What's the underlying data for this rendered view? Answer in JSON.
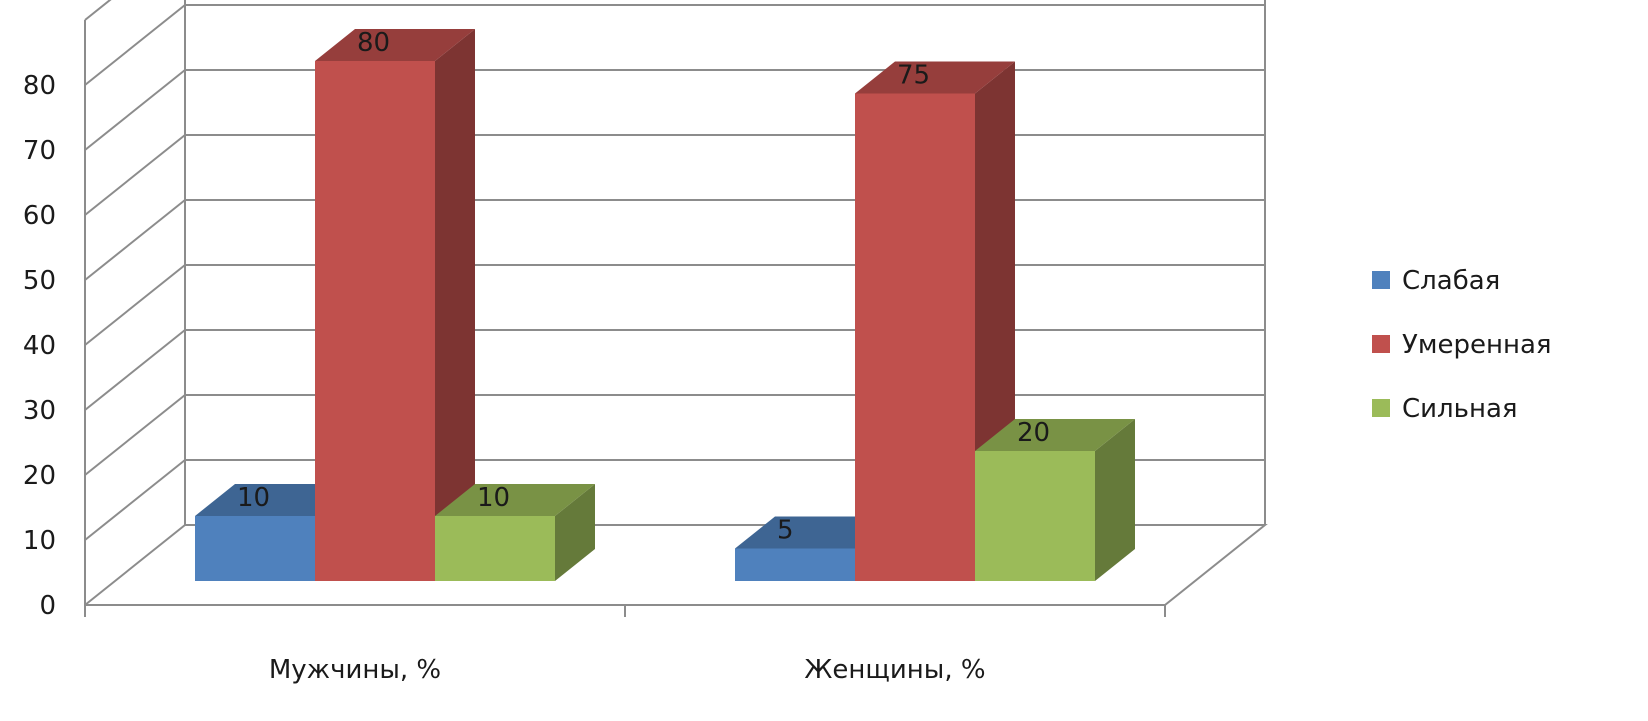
{
  "chart_data": {
    "type": "bar",
    "categories": [
      "Мужчины, %",
      "Женщины, %"
    ],
    "series": [
      {
        "name": "Слабая",
        "values": [
          10,
          5
        ],
        "color": "#4F81BD"
      },
      {
        "name": "Умеренная",
        "values": [
          80,
          75
        ],
        "color": "#C0504D"
      },
      {
        "name": "Сильная",
        "values": [
          10,
          20
        ],
        "color": "#9BBB59"
      }
    ],
    "y_ticks": [
      "0",
      "10",
      "20",
      "30",
      "40",
      "50",
      "60",
      "70",
      "80"
    ],
    "ylim": [
      0,
      90
    ],
    "data_labels": [
      [
        "10",
        "5"
      ],
      [
        "80",
        "75"
      ],
      [
        "10",
        "20"
      ]
    ],
    "grid": true,
    "style": "3d",
    "legend": {
      "position": "right"
    }
  }
}
